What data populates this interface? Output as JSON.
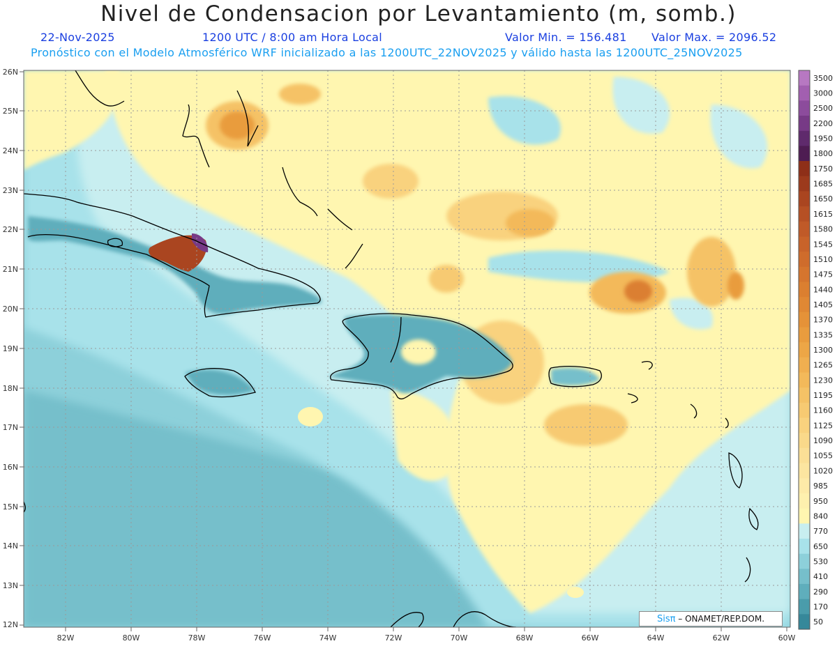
{
  "title": "Nivel de Condensacion por Levantamiento (m, somb.)",
  "date": "22-Nov-2025",
  "time": "1200 UTC / 8:00 am Hora Local",
  "min_label": "Valor Min. = 156.481",
  "max_label": "Valor Max. = 2096.52",
  "forecast_line": "Pronóstico con el Modelo Atmosférico WRF inicializado a las 1200UTC_22NOV2025 y válido hasta las  1200UTC_25NOV2025",
  "credit": {
    "brand": "Sisπ",
    "sep": "–",
    "text": "ONAMET/REP.DOM."
  },
  "lat_labels": [
    "26N",
    "25N",
    "24N",
    "23N",
    "22N",
    "21N",
    "20N",
    "19N",
    "18N",
    "17N",
    "16N",
    "15N",
    "14N",
    "13N",
    "12N"
  ],
  "lon_labels": [
    "82W",
    "80W",
    "78W",
    "76W",
    "74W",
    "72W",
    "70W",
    "68W",
    "66W",
    "64W",
    "62W",
    "60W"
  ],
  "colorbar": [
    {
      "label": "3500",
      "color": "#b778c2"
    },
    {
      "label": "3000",
      "color": "#a25fb0"
    },
    {
      "label": "2500",
      "color": "#8c4c9c"
    },
    {
      "label": "2200",
      "color": "#773a86"
    },
    {
      "label": "1950",
      "color": "#5f2a6c"
    },
    {
      "label": "1800",
      "color": "#4e1c52"
    },
    {
      "label": "1750",
      "color": "#8e2f18"
    },
    {
      "label": "1685",
      "color": "#9c3a1c"
    },
    {
      "label": "1650",
      "color": "#aa4520"
    },
    {
      "label": "1615",
      "color": "#b65024"
    },
    {
      "label": "1580",
      "color": "#c05a28"
    },
    {
      "label": "1545",
      "color": "#c8632a"
    },
    {
      "label": "1510",
      "color": "#cf6c2c"
    },
    {
      "label": "1475",
      "color": "#d5752e"
    },
    {
      "label": "1440",
      "color": "#db7f30"
    },
    {
      "label": "1405",
      "color": "#e08834"
    },
    {
      "label": "1370",
      "color": "#e59238"
    },
    {
      "label": "1335",
      "color": "#e99c3e"
    },
    {
      "label": "1300",
      "color": "#eda646"
    },
    {
      "label": "1265",
      "color": "#f0af50"
    },
    {
      "label": "1230",
      "color": "#f3b95a"
    },
    {
      "label": "1195",
      "color": "#f5c266"
    },
    {
      "label": "1160",
      "color": "#f7ca72"
    },
    {
      "label": "1125",
      "color": "#f9d27e"
    },
    {
      "label": "1090",
      "color": "#fad98a"
    },
    {
      "label": "1055",
      "color": "#fbdf96"
    },
    {
      "label": "1020",
      "color": "#fce5a0"
    },
    {
      "label": "985",
      "color": "#fdeaa8"
    },
    {
      "label": "950",
      "color": "#fef0ae"
    },
    {
      "label": "840",
      "color": "#fff6b0"
    },
    {
      "label": "770",
      "color": "#c8eef0"
    },
    {
      "label": "650",
      "color": "#a8e2ea"
    },
    {
      "label": "530",
      "color": "#8dd0da"
    },
    {
      "label": "410",
      "color": "#76bfcb"
    },
    {
      "label": "290",
      "color": "#5faebc"
    },
    {
      "label": "170",
      "color": "#4a9cab"
    },
    {
      "label": "50",
      "color": "#36889a"
    }
  ],
  "colors": {
    "field_low": "#8dd0da",
    "field_mid": "#a8e2ea",
    "field_light": "#c8eef0",
    "field_yellow": "#fff6b0",
    "field_orange": "#f5c266",
    "field_dark_orange": "#db7f30",
    "field_brown": "#aa4520",
    "field_purple": "#773a86",
    "coast": "#000000",
    "grid": "#9a9a9a",
    "axis_text": "#333333"
  }
}
